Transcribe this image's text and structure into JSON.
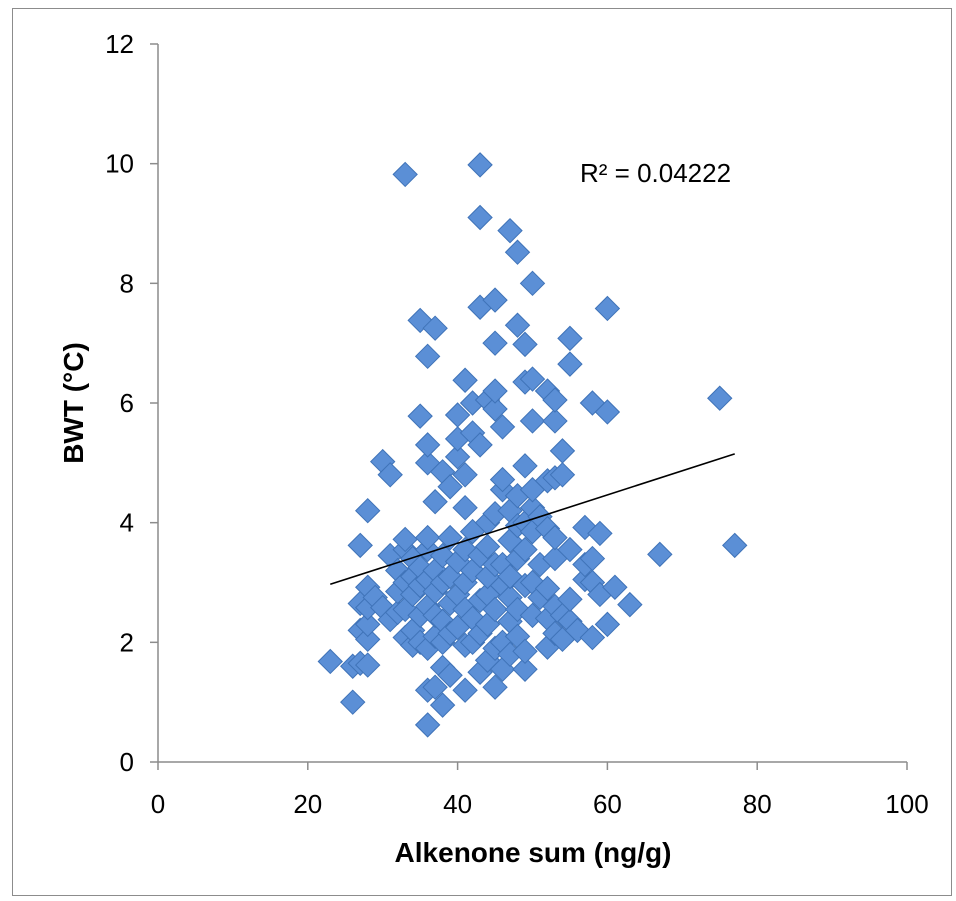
{
  "chart_data": {
    "type": "scatter",
    "xlabel": "Alkenone sum (ng/g)",
    "ylabel": "BWT (°C)",
    "xlim": [
      0,
      100
    ],
    "ylim": [
      0,
      12
    ],
    "xticks": [
      "0",
      "20",
      "40",
      "60",
      "80",
      "100"
    ],
    "yticks": [
      "0",
      "2",
      "4",
      "6",
      "8",
      "10",
      "12"
    ],
    "grid": false,
    "annotation": "R² = 0.04222",
    "marker": "diamond",
    "marker_color": "#5b8fd6",
    "trendline": {
      "type": "linear",
      "points": [
        [
          23,
          2.97
        ],
        [
          77,
          5.15
        ]
      ]
    },
    "series": [
      {
        "points": [
          [
            23,
            1.68
          ],
          [
            26,
            1.0
          ],
          [
            26,
            1.6
          ],
          [
            27,
            1.65
          ],
          [
            27,
            2.2
          ],
          [
            27,
            2.65
          ],
          [
            27,
            3.62
          ],
          [
            28,
            1.62
          ],
          [
            28,
            2.05
          ],
          [
            28,
            2.3
          ],
          [
            28,
            2.58
          ],
          [
            28,
            2.92
          ],
          [
            28,
            4.2
          ],
          [
            29,
            2.75
          ],
          [
            30,
            2.58
          ],
          [
            30,
            5.02
          ],
          [
            31,
            2.38
          ],
          [
            31,
            3.45
          ],
          [
            31,
            4.8
          ],
          [
            32,
            2.5
          ],
          [
            32,
            2.85
          ],
          [
            32,
            3.2
          ],
          [
            33,
            2.08
          ],
          [
            33,
            2.55
          ],
          [
            33,
            3.0
          ],
          [
            33,
            3.55
          ],
          [
            33,
            3.72
          ],
          [
            33,
            9.82
          ],
          [
            34,
            1.95
          ],
          [
            34,
            2.2
          ],
          [
            34,
            2.8
          ],
          [
            34,
            3.1
          ],
          [
            34,
            3.4
          ],
          [
            35,
            2.0
          ],
          [
            35,
            2.45
          ],
          [
            35,
            2.95
          ],
          [
            35,
            3.25
          ],
          [
            35,
            5.78
          ],
          [
            35,
            7.38
          ],
          [
            36,
            0.62
          ],
          [
            36,
            1.2
          ],
          [
            36,
            1.9
          ],
          [
            36,
            2.6
          ],
          [
            36,
            3.05
          ],
          [
            36,
            3.55
          ],
          [
            36,
            3.75
          ],
          [
            36,
            5.0
          ],
          [
            36,
            5.3
          ],
          [
            36,
            6.78
          ],
          [
            37,
            1.25
          ],
          [
            37,
            2.1
          ],
          [
            37,
            2.45
          ],
          [
            37,
            2.85
          ],
          [
            37,
            3.2
          ],
          [
            37,
            4.35
          ],
          [
            37,
            7.25
          ],
          [
            38,
            0.95
          ],
          [
            38,
            1.58
          ],
          [
            38,
            2.0
          ],
          [
            38,
            2.35
          ],
          [
            38,
            3.0
          ],
          [
            38,
            3.45
          ],
          [
            38,
            4.85
          ],
          [
            39,
            1.45
          ],
          [
            39,
            2.15
          ],
          [
            39,
            2.65
          ],
          [
            39,
            3.1
          ],
          [
            39,
            3.75
          ],
          [
            39,
            4.6
          ],
          [
            40,
            2.25
          ],
          [
            40,
            2.8
          ],
          [
            40,
            3.35
          ],
          [
            40,
            5.1
          ],
          [
            40,
            5.4
          ],
          [
            40,
            5.8
          ],
          [
            41,
            1.2
          ],
          [
            41,
            1.95
          ],
          [
            41,
            2.55
          ],
          [
            41,
            3.0
          ],
          [
            41,
            3.55
          ],
          [
            41,
            4.25
          ],
          [
            41,
            4.8
          ],
          [
            41,
            6.38
          ],
          [
            42,
            2.0
          ],
          [
            42,
            2.4
          ],
          [
            42,
            3.2
          ],
          [
            42,
            3.85
          ],
          [
            42,
            5.5
          ],
          [
            42,
            6.0
          ],
          [
            43,
            1.5
          ],
          [
            43,
            2.15
          ],
          [
            43,
            2.7
          ],
          [
            43,
            3.45
          ],
          [
            43,
            5.3
          ],
          [
            43,
            7.6
          ],
          [
            43,
            9.1
          ],
          [
            43,
            9.98
          ],
          [
            44,
            1.7
          ],
          [
            44,
            2.3
          ],
          [
            44,
            2.8
          ],
          [
            44,
            3.1
          ],
          [
            44,
            3.6
          ],
          [
            44,
            4.0
          ],
          [
            44,
            6.05
          ],
          [
            45,
            1.25
          ],
          [
            45,
            1.9
          ],
          [
            45,
            2.55
          ],
          [
            45,
            3.3
          ],
          [
            45,
            4.15
          ],
          [
            45,
            5.9
          ],
          [
            45,
            6.2
          ],
          [
            45,
            7.0
          ],
          [
            45,
            7.72
          ],
          [
            46,
            1.55
          ],
          [
            46,
            2.0
          ],
          [
            46,
            2.95
          ],
          [
            46,
            3.3
          ],
          [
            46,
            4.55
          ],
          [
            46,
            4.72
          ],
          [
            46,
            5.6
          ],
          [
            47,
            1.8
          ],
          [
            47,
            2.35
          ],
          [
            47,
            2.75
          ],
          [
            47,
            3.1
          ],
          [
            47,
            3.7
          ],
          [
            47,
            4.2
          ],
          [
            47,
            8.88
          ],
          [
            48,
            2.1
          ],
          [
            48,
            2.55
          ],
          [
            48,
            3.4
          ],
          [
            48,
            3.95
          ],
          [
            48,
            4.45
          ],
          [
            48,
            7.3
          ],
          [
            48,
            8.52
          ],
          [
            49,
            1.55
          ],
          [
            49,
            1.85
          ],
          [
            49,
            2.95
          ],
          [
            49,
            3.55
          ],
          [
            49,
            4.0
          ],
          [
            49,
            4.95
          ],
          [
            49,
            6.35
          ],
          [
            49,
            6.98
          ],
          [
            50,
            2.45
          ],
          [
            50,
            3.0
          ],
          [
            50,
            3.85
          ],
          [
            50,
            4.25
          ],
          [
            50,
            4.55
          ],
          [
            50,
            5.7
          ],
          [
            50,
            6.4
          ],
          [
            50,
            8.0
          ],
          [
            51,
            2.75
          ],
          [
            51,
            3.3
          ],
          [
            51,
            4.1
          ],
          [
            52,
            1.92
          ],
          [
            52,
            2.4
          ],
          [
            52,
            2.9
          ],
          [
            52,
            3.9
          ],
          [
            52,
            4.7
          ],
          [
            52,
            6.2
          ],
          [
            53,
            2.15
          ],
          [
            53,
            2.6
          ],
          [
            53,
            3.4
          ],
          [
            53,
            3.75
          ],
          [
            53,
            4.75
          ],
          [
            53,
            5.7
          ],
          [
            53,
            6.05
          ],
          [
            54,
            2.05
          ],
          [
            54,
            2.45
          ],
          [
            54,
            4.8
          ],
          [
            54,
            5.2
          ],
          [
            55,
            2.35
          ],
          [
            55,
            2.72
          ],
          [
            55,
            3.55
          ],
          [
            55,
            6.65
          ],
          [
            55,
            7.08
          ],
          [
            56,
            2.2
          ],
          [
            57,
            3.05
          ],
          [
            57,
            3.3
          ],
          [
            57,
            3.92
          ],
          [
            58,
            2.08
          ],
          [
            58,
            3.0
          ],
          [
            58,
            3.4
          ],
          [
            58,
            6.0
          ],
          [
            59,
            2.8
          ],
          [
            59,
            3.82
          ],
          [
            60,
            2.3
          ],
          [
            60,
            5.85
          ],
          [
            60,
            7.58
          ],
          [
            61,
            2.92
          ],
          [
            63,
            2.63
          ],
          [
            67,
            3.47
          ],
          [
            75,
            6.08
          ],
          [
            77,
            3.62
          ]
        ]
      }
    ]
  }
}
